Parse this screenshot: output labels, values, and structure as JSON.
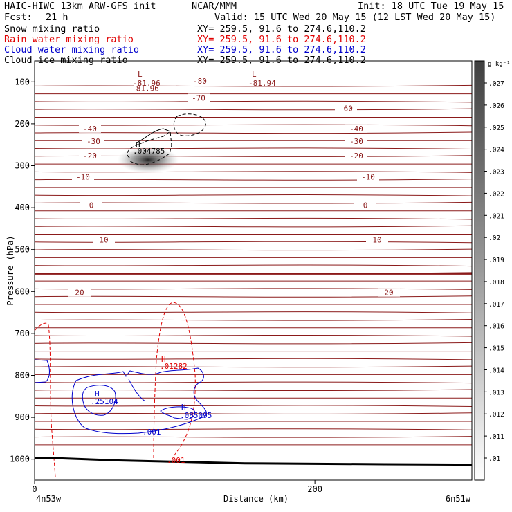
{
  "header": {
    "model": "HAIC-HIWC 13km ARW-GFS init",
    "center": "NCAR/MMM",
    "init": "Init: 18 UTC Tue 19 May 15",
    "fcst_label": "Fcst:",
    "fcst_value": "21 h",
    "valid": "Valid: 15 UTC Wed 20 May 15 (12 LST Wed 20 May 15)",
    "fields": [
      {
        "name": "Snow mixing ratio",
        "xy": "XY= 259.5, 91.6 to 274.6,110.2",
        "color": "#000000"
      },
      {
        "name": "Rain water mixing ratio",
        "xy": "XY= 259.5, 91.6 to 274.6,110.2",
        "color": "#e00000"
      },
      {
        "name": "Cloud water mixing ratio",
        "xy": "XY= 259.5, 91.6 to 274.6,110.2",
        "color": "#0000cc"
      },
      {
        "name": "Cloud ice mixing ratio",
        "xy": "XY= 259.5, 91.6 to 274.6,110.2",
        "color": "#000000"
      }
    ]
  },
  "chart_data": {
    "type": "contour_cross_section",
    "xlabel": "Distance (km)",
    "ylabel": "Pressure (hPa)",
    "xlim": [
      0,
      312
    ],
    "ylim": [
      1050,
      50
    ],
    "x_ticks": [
      0,
      200
    ],
    "y_ticks": [
      100,
      200,
      300,
      400,
      500,
      600,
      700,
      800,
      900,
      1000
    ],
    "x_endpoints": {
      "left": "4n53w",
      "right": "6n51w"
    },
    "colorbar": {
      "unit": "g kg⁻¹",
      "levels": [
        ".027",
        ".026",
        ".025",
        ".024",
        ".023",
        ".022",
        ".021",
        ".02",
        ".019",
        ".018",
        ".017",
        ".016",
        ".015",
        ".014",
        ".013",
        ".012",
        ".011",
        ".01"
      ]
    },
    "temperature_contours": {
      "color": "#8b1a1a",
      "levels": [
        {
          "p": 117,
          "label": "-81.96"
        },
        {
          "p": 147,
          "label": "-70"
        },
        {
          "p": 184,
          "label": "-60"
        },
        {
          "p": 213,
          "label": "-40"
        },
        {
          "p": 250,
          "label": "-30"
        },
        {
          "p": 300,
          "label": "-20"
        },
        {
          "p": 350,
          "label": "-10"
        },
        {
          "p": 405,
          "label": "0"
        },
        {
          "p": 472,
          "label": "10"
        },
        {
          "p": 615,
          "label": "20"
        }
      ],
      "extremes": [
        {
          "type": "L",
          "x": 75,
          "p": 108,
          "value": "-81.96"
        },
        {
          "type": "L",
          "x": 157,
          "p": 108,
          "value": "-81.94"
        }
      ],
      "extra_labels": [
        "-80"
      ]
    },
    "features": [
      {
        "field": "Cloud ice mixing ratio",
        "type": "H",
        "x": 73,
        "p": 262,
        "value": ".004785"
      },
      {
        "field": "Rain water mixing ratio",
        "type": "H",
        "x": 91,
        "p": 778,
        "value": ".01282",
        "contour_label": ".001"
      },
      {
        "field": "Cloud water mixing ratio",
        "type": "H",
        "x": 40,
        "p": 852,
        "value": ".25104",
        "contour_label": ".001"
      },
      {
        "field": "Cloud water mixing ratio",
        "type": "H",
        "x": 105,
        "p": 890,
        "value": ".085095"
      }
    ],
    "surface_pressure": [
      {
        "x": 0,
        "p": 997
      },
      {
        "x": 20,
        "p": 998
      },
      {
        "x": 60,
        "p": 1003
      },
      {
        "x": 100,
        "p": 1006
      },
      {
        "x": 150,
        "p": 1010
      },
      {
        "x": 200,
        "p": 1011
      },
      {
        "x": 250,
        "p": 1012
      },
      {
        "x": 312,
        "p": 1013
      }
    ]
  }
}
